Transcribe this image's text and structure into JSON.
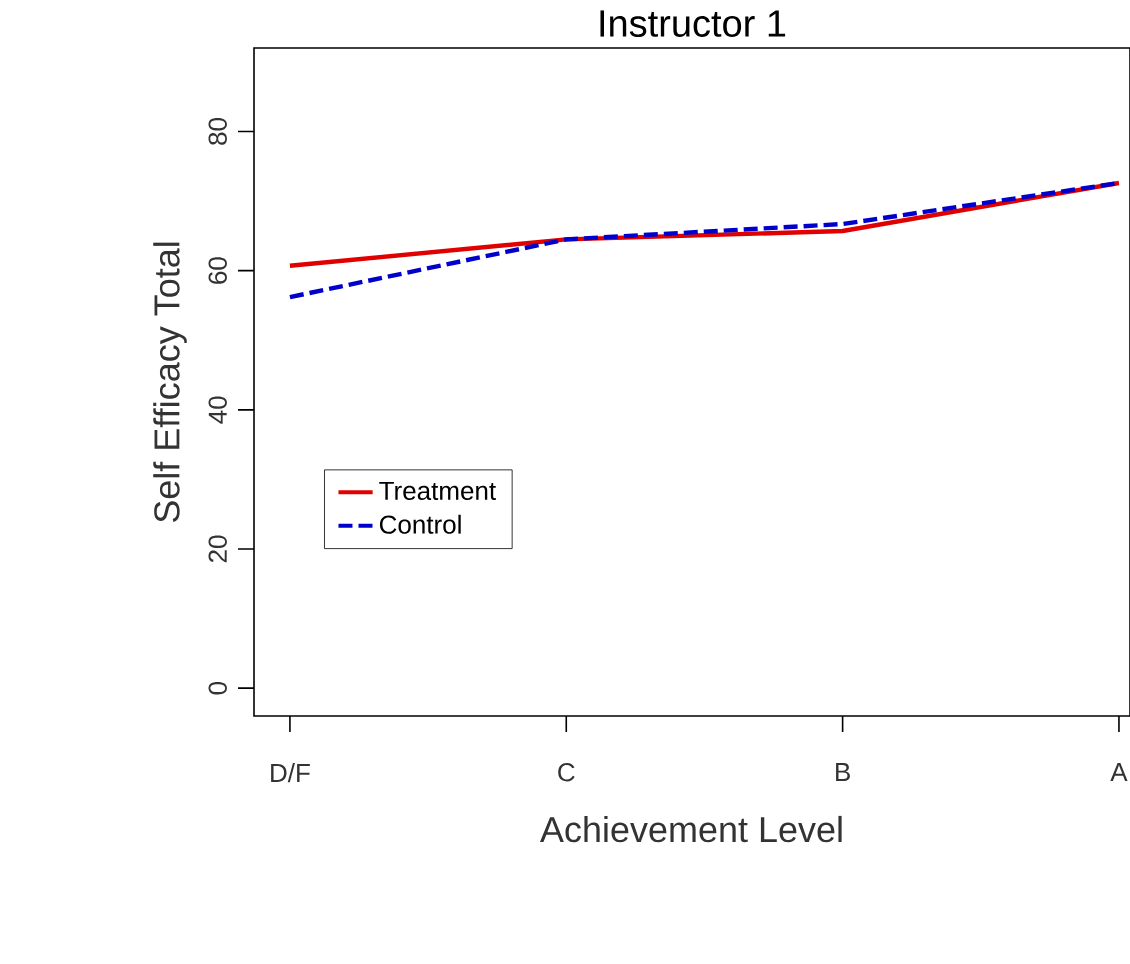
{
  "chart_data": {
    "type": "line",
    "title": "Instructor 1",
    "xlabel": "Achievement Level",
    "ylabel": "Self Efficacy Total",
    "categories": [
      "D/F",
      "C",
      "B",
      "A"
    ],
    "series": [
      {
        "name": "Treatment",
        "color": "#e00000",
        "line_style": "solid",
        "values": [
          60.7,
          64.5,
          65.7,
          72.6
        ]
      },
      {
        "name": "Control",
        "color": "#0000cc",
        "line_style": "dashed",
        "values": [
          56.2,
          64.5,
          66.7,
          72.6
        ]
      }
    ],
    "ylim": [
      -4,
      92
    ],
    "yticks": [
      0,
      20,
      40,
      60,
      80
    ],
    "legend": "left",
    "grid": false,
    "marker": "none"
  }
}
